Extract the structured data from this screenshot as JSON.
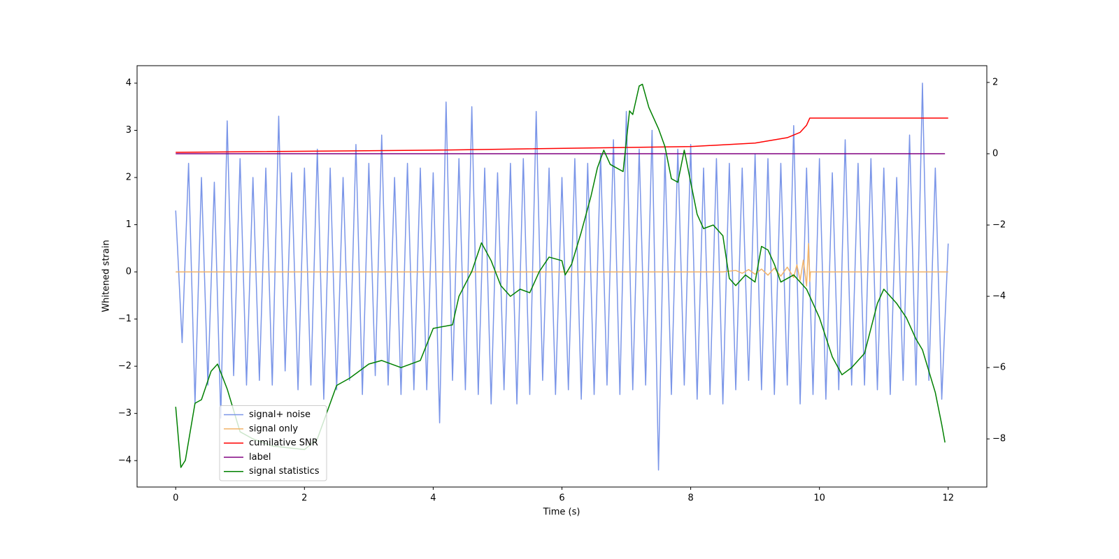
{
  "chart_data": {
    "type": "line",
    "xlabel": "Time (s)",
    "ylabel": "Whitened strain",
    "xlim": [
      -0.6,
      12.6
    ],
    "ylim": [
      -4.56,
      4.37
    ],
    "y2lim": [
      -9.35,
      2.47
    ],
    "xticks": [
      0,
      2,
      4,
      6,
      8,
      10,
      12
    ],
    "yticks": [
      {
        "value": -4,
        "label": "−4"
      },
      {
        "value": -3,
        "label": "−3"
      },
      {
        "value": -2,
        "label": "−2"
      },
      {
        "value": -1,
        "label": "−1"
      },
      0,
      1,
      2,
      3,
      4
    ],
    "y2ticks": [
      {
        "value": -8,
        "label": "−8"
      },
      {
        "value": -6,
        "label": "−6"
      },
      {
        "value": -4,
        "label": "−4"
      },
      {
        "value": -2,
        "label": "−2"
      },
      0,
      2
    ],
    "legend": "lower left",
    "series": [
      {
        "name": "signal+ noise",
        "color": "#7a95e8",
        "x": [
          0,
          0.1,
          0.2,
          0.3,
          0.4,
          0.5,
          0.6,
          0.7,
          0.8,
          0.9,
          1,
          1.1,
          1.2,
          1.3,
          1.4,
          1.5,
          1.6,
          1.7,
          1.8,
          1.9,
          2,
          2.1,
          2.2,
          2.3,
          2.4,
          2.5,
          2.6,
          2.7,
          2.8,
          2.9,
          3,
          3.1,
          3.2,
          3.3,
          3.4,
          3.5,
          3.6,
          3.7,
          3.8,
          3.9,
          4,
          4.1,
          4.2,
          4.3,
          4.4,
          4.5,
          4.6,
          4.7,
          4.8,
          4.9,
          5,
          5.1,
          5.2,
          5.3,
          5.4,
          5.5,
          5.6,
          5.7,
          5.8,
          5.9,
          6,
          6.1,
          6.2,
          6.3,
          6.4,
          6.5,
          6.6,
          6.7,
          6.8,
          6.9,
          7,
          7.1,
          7.2,
          7.3,
          7.4,
          7.5,
          7.6,
          7.7,
          7.8,
          7.9,
          8,
          8.1,
          8.2,
          8.3,
          8.4,
          8.5,
          8.6,
          8.7,
          8.8,
          8.9,
          9,
          9.1,
          9.2,
          9.3,
          9.4,
          9.5,
          9.6,
          9.7,
          9.8,
          9.9,
          10,
          10.1,
          10.2,
          10.3,
          10.4,
          10.5,
          10.6,
          10.7,
          10.8,
          10.9,
          11,
          11.1,
          11.2,
          11.3,
          11.4,
          11.5,
          11.6,
          11.7,
          11.8,
          11.9,
          12
        ],
        "values": [
          1.3,
          -1.5,
          2.3,
          -2.8,
          2.0,
          -2.4,
          1.9,
          -3.1,
          3.2,
          -2.2,
          2.4,
          -2.4,
          2.0,
          -2.3,
          2.2,
          -2.4,
          3.3,
          -2.1,
          2.1,
          -2.5,
          2.2,
          -2.4,
          2.6,
          -2.7,
          2.2,
          -2.5,
          2.0,
          -2.3,
          2.7,
          -2.6,
          2.3,
          -2.2,
          2.9,
          -2.4,
          2.0,
          -2.6,
          2.3,
          -2.5,
          2.2,
          -2.5,
          2.1,
          -3.2,
          3.6,
          -2.3,
          2.4,
          -2.5,
          3.5,
          -2.6,
          2.2,
          -2.8,
          2.1,
          -2.5,
          2.3,
          -2.8,
          2.4,
          -2.6,
          3.4,
          -2.3,
          2.2,
          -2.6,
          2.0,
          -2.5,
          2.4,
          -2.7,
          2.3,
          -2.6,
          2.5,
          -2.4,
          2.8,
          -2.6,
          3.4,
          -2.5,
          2.6,
          -2.4,
          3.0,
          -4.2,
          2.5,
          -2.6,
          2.6,
          -2.4,
          2.7,
          -2.7,
          2.2,
          -2.6,
          2.4,
          -2.8,
          2.3,
          -2.5,
          2.2,
          -2.3,
          2.5,
          -2.5,
          2.4,
          -2.6,
          2.3,
          -2.4,
          3.1,
          -2.8,
          2.2,
          -2.6,
          2.4,
          -2.7,
          2.1,
          -2.5,
          2.8,
          -2.4,
          2.3,
          -2.4,
          2.4,
          -2.5,
          2.2,
          -2.6,
          2.0,
          -2.3,
          2.9,
          -2.4,
          4.0,
          -2.3,
          2.2,
          -2.7,
          0.6
        ]
      },
      {
        "name": "signal only",
        "color": "#f2b46a",
        "x": [
          0,
          8.5,
          8.7,
          8.8,
          8.9,
          9.0,
          9.1,
          9.2,
          9.3,
          9.4,
          9.5,
          9.6,
          9.65,
          9.7,
          9.75,
          9.8,
          9.83,
          9.85,
          9.86,
          12
        ],
        "values": [
          0,
          0,
          0.03,
          -0.03,
          0.05,
          -0.05,
          0.06,
          -0.07,
          0.08,
          -0.09,
          0.1,
          -0.12,
          0.15,
          -0.18,
          0.25,
          -0.3,
          0.6,
          -0.2,
          0,
          0
        ]
      },
      {
        "name": "cumilative SNR",
        "color": "#ff0000",
        "axis": "y2",
        "x": [
          0,
          4,
          8,
          9,
          9.5,
          9.7,
          9.8,
          9.85,
          12
        ],
        "values": [
          0.04,
          0.1,
          0.2,
          0.3,
          0.45,
          0.6,
          0.8,
          1.0,
          1.0
        ]
      },
      {
        "name": "label",
        "color": "#800080",
        "axis": "y2",
        "x": [
          0,
          11.95
        ],
        "values": [
          0,
          0
        ]
      },
      {
        "name": "signal statistics",
        "color": "#008000",
        "axis": "y2",
        "x": [
          0,
          0.08,
          0.15,
          0.3,
          0.4,
          0.55,
          0.65,
          0.8,
          1.0,
          1.2,
          1.5,
          2.0,
          2.2,
          2.5,
          2.7,
          3.0,
          3.2,
          3.5,
          3.8,
          4.0,
          4.3,
          4.4,
          4.6,
          4.75,
          4.9,
          5.05,
          5.2,
          5.35,
          5.5,
          5.65,
          5.8,
          6.0,
          6.05,
          6.15,
          6.3,
          6.45,
          6.55,
          6.65,
          6.75,
          6.95,
          7.05,
          7.1,
          7.2,
          7.25,
          7.35,
          7.5,
          7.6,
          7.7,
          7.8,
          7.9,
          8.0,
          8.1,
          8.2,
          8.35,
          8.5,
          8.6,
          8.7,
          8.85,
          9.0,
          9.1,
          9.2,
          9.3,
          9.4,
          9.6,
          9.8,
          10.0,
          10.2,
          10.35,
          10.5,
          10.7,
          10.8,
          10.9,
          11.0,
          11.1,
          11.2,
          11.35,
          11.5,
          11.6,
          11.8,
          11.9,
          11.95
        ],
        "values": [
          -7.1,
          -8.8,
          -8.6,
          -7.0,
          -6.9,
          -6.1,
          -5.9,
          -6.6,
          -7.8,
          -8.0,
          -8.2,
          -8.3,
          -8.0,
          -6.5,
          -6.3,
          -5.9,
          -5.8,
          -6.0,
          -5.8,
          -4.9,
          -4.8,
          -4.0,
          -3.3,
          -2.5,
          -3.0,
          -3.7,
          -4.0,
          -3.8,
          -3.9,
          -3.3,
          -2.9,
          -3.0,
          -3.4,
          -3.1,
          -2.2,
          -1.2,
          -0.4,
          0.1,
          -0.3,
          -0.5,
          1.2,
          1.1,
          1.9,
          1.95,
          1.3,
          0.7,
          0.2,
          -0.7,
          -0.8,
          0.1,
          -0.8,
          -1.7,
          -2.1,
          -2.0,
          -2.3,
          -3.5,
          -3.7,
          -3.4,
          -3.6,
          -2.6,
          -2.7,
          -3.1,
          -3.6,
          -3.4,
          -3.8,
          -4.6,
          -5.7,
          -6.2,
          -6.0,
          -5.6,
          -4.9,
          -4.2,
          -3.8,
          -4.0,
          -4.2,
          -4.6,
          -5.2,
          -5.5,
          -6.7,
          -7.6,
          -8.1
        ]
      }
    ]
  }
}
